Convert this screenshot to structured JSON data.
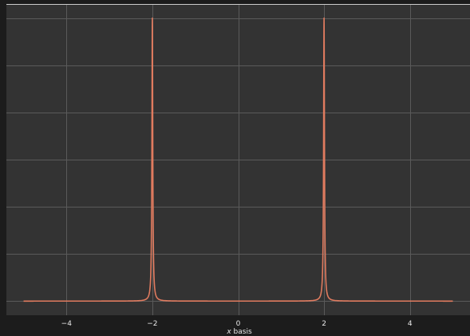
{
  "chart_data": {
    "type": "line",
    "title": "",
    "xlabel_var": "x",
    "xlabel_rest": " basis",
    "ylabel": "",
    "xlim": [
      -5.4,
      5.4
    ],
    "ylim": [
      -0.05,
      1.05
    ],
    "xticks": [
      -4,
      -2,
      0,
      2,
      4
    ],
    "xtick_labels": [
      "−4",
      "−2",
      "0",
      "2",
      "4"
    ],
    "ygrid": [
      0.0,
      0.167,
      0.333,
      0.5,
      0.667,
      0.833,
      1.0
    ],
    "grid": true,
    "legend": "none",
    "series": [
      {
        "color": "#e07b5f",
        "peaks": [
          {
            "center": -2,
            "height": 1.0,
            "width": 0.012
          },
          {
            "center": 2,
            "height": 1.0,
            "width": 0.012
          }
        ],
        "x_range": [
          -5,
          5
        ],
        "baseline": 0.0
      }
    ],
    "colors": {
      "background": "#1c1c1c",
      "plot_area": "#333333",
      "grid": "#5a5a5a",
      "spine": "#cccccc"
    }
  }
}
